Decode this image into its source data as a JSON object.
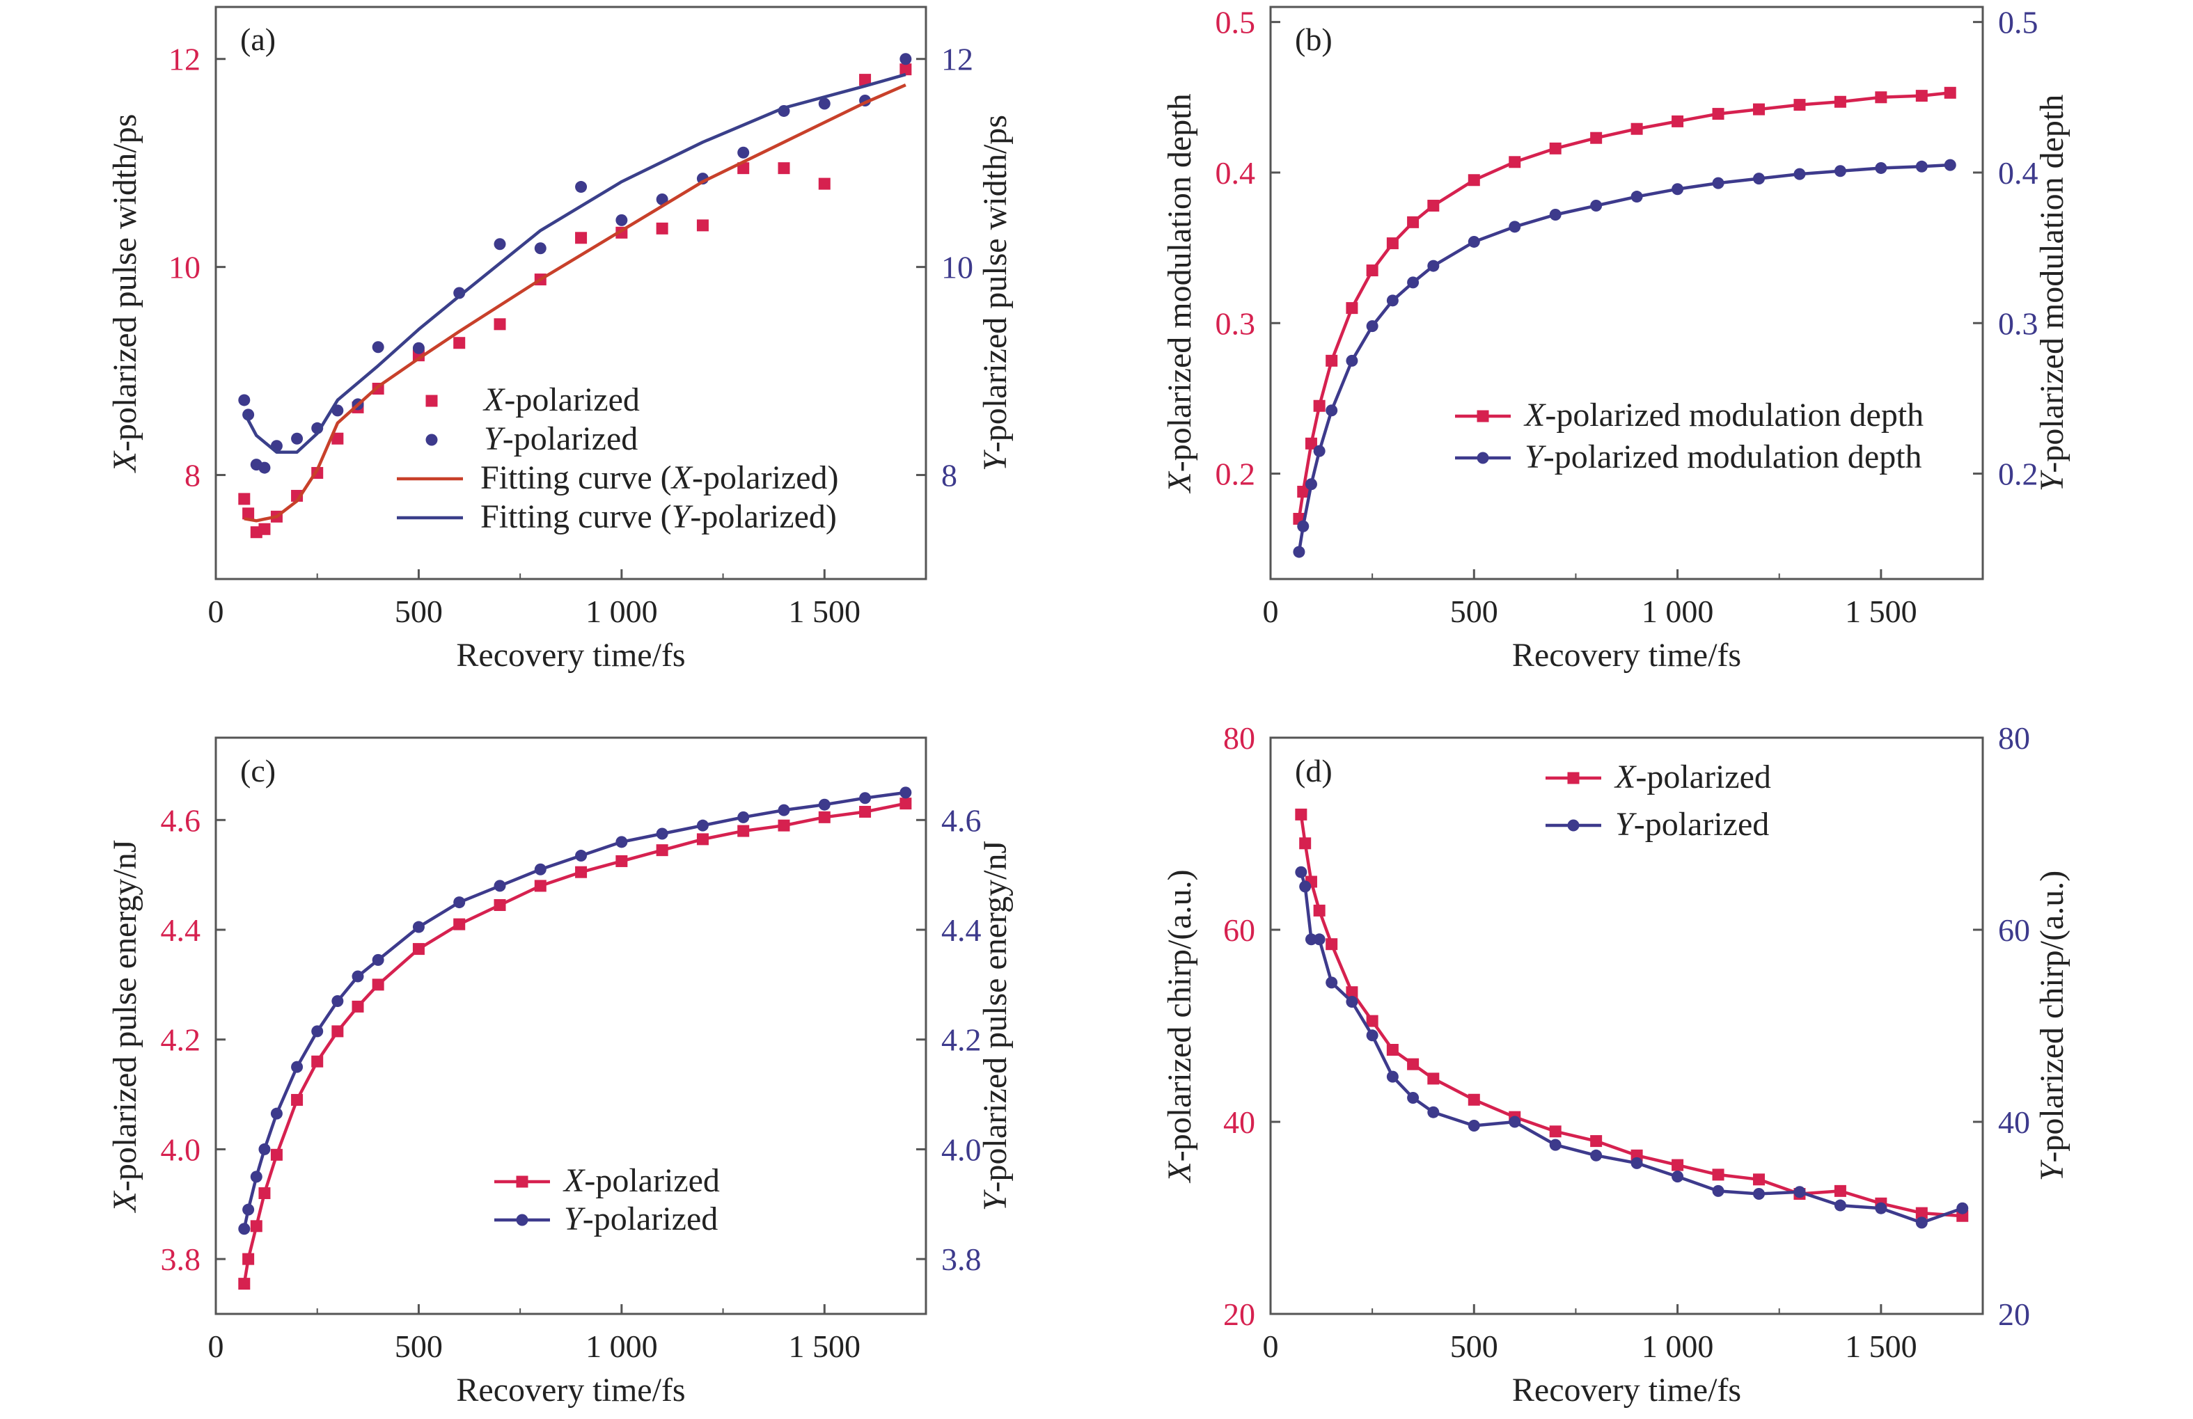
{
  "colors": {
    "x_series": "#d6214f",
    "y_series": "#3d3a8c",
    "fit_x": "#c8402a",
    "fit_y": "#3a3f8a",
    "axis": "#555555"
  },
  "chart_data": [
    {
      "panel": "(a)",
      "type": "scatter",
      "xlabel": "Recovery time/fs",
      "ylabel_left": "X-polarized pulse width/ps",
      "ylabel_right": "Y-polarized pulse width/ps",
      "xlim": [
        0,
        1750
      ],
      "ylim": [
        7,
        12.5
      ],
      "xticks": [
        0,
        500,
        1000,
        1500
      ],
      "xtick_labels": [
        "0",
        "500",
        "1 000",
        "1 500"
      ],
      "yticks": [
        8,
        10,
        12
      ],
      "ytick_labels": [
        "8",
        "10",
        "12"
      ],
      "legend": [
        "X-polarized",
        "Y-polarized",
        "Fitting curve (X-polarized)",
        "Fitting curve (Y-polarized)"
      ],
      "series": [
        {
          "name": "X-polarized",
          "role": "points",
          "x": [
            70,
            80,
            100,
            120,
            150,
            200,
            250,
            300,
            350,
            400,
            500,
            600,
            700,
            800,
            900,
            1000,
            1100,
            1200,
            1300,
            1400,
            1500,
            1600,
            1700
          ],
          "y": [
            7.77,
            7.63,
            7.45,
            7.48,
            7.6,
            7.8,
            8.02,
            8.35,
            8.65,
            8.83,
            9.15,
            9.27,
            9.45,
            9.88,
            10.28,
            10.33,
            10.37,
            10.4,
            10.95,
            10.95,
            10.8,
            11.8,
            11.9
          ]
        },
        {
          "name": "Y-polarized",
          "role": "points",
          "x": [
            70,
            80,
            100,
            120,
            150,
            200,
            250,
            300,
            350,
            400,
            500,
            600,
            700,
            800,
            900,
            1000,
            1100,
            1200,
            1300,
            1400,
            1500,
            1600,
            1700
          ],
          "y": [
            8.72,
            8.58,
            8.1,
            8.07,
            8.28,
            8.35,
            8.45,
            8.62,
            8.68,
            9.23,
            9.22,
            9.75,
            10.22,
            10.18,
            10.77,
            10.45,
            10.65,
            10.85,
            11.1,
            11.5,
            11.57,
            11.6,
            12.0
          ]
        },
        {
          "name": "Fitting curve (X-polarized)",
          "role": "curve",
          "x": [
            70,
            100,
            150,
            200,
            250,
            300,
            400,
            500,
            600,
            800,
            1000,
            1200,
            1400,
            1600,
            1700
          ],
          "y": [
            7.58,
            7.56,
            7.6,
            7.75,
            8.05,
            8.5,
            8.85,
            9.12,
            9.38,
            9.88,
            10.35,
            10.82,
            11.2,
            11.58,
            11.75
          ]
        },
        {
          "name": "Fitting curve (Y-polarized)",
          "role": "curve",
          "x": [
            70,
            100,
            150,
            200,
            250,
            300,
            400,
            500,
            600,
            800,
            1000,
            1200,
            1400,
            1600,
            1700
          ],
          "y": [
            8.6,
            8.38,
            8.22,
            8.22,
            8.4,
            8.72,
            9.05,
            9.4,
            9.72,
            10.35,
            10.82,
            11.2,
            11.53,
            11.74,
            11.85
          ]
        }
      ]
    },
    {
      "panel": "(b)",
      "type": "line",
      "xlabel": "Recovery time/fs",
      "ylabel_left": "X-polarized modulation depth",
      "ylabel_right": "Y-polarized modulation depth",
      "xlim": [
        0,
        1750
      ],
      "ylim": [
        0.13,
        0.51
      ],
      "xticks": [
        0,
        500,
        1000,
        1500
      ],
      "xtick_labels": [
        "0",
        "500",
        "1 000",
        "1 500"
      ],
      "yticks": [
        0.2,
        0.3,
        0.4,
        0.5
      ],
      "ytick_labels": [
        "0.2",
        "0.3",
        "0.4",
        "0.5"
      ],
      "legend": [
        "X-polarized modulation depth",
        "Y-polarized modulation depth"
      ],
      "series": [
        {
          "name": "X-polarized modulation depth",
          "x": [
            70,
            80,
            100,
            120,
            150,
            200,
            250,
            300,
            350,
            400,
            500,
            600,
            700,
            800,
            900,
            1000,
            1100,
            1200,
            1300,
            1400,
            1500,
            1600,
            1670
          ],
          "y": [
            0.17,
            0.188,
            0.22,
            0.245,
            0.275,
            0.31,
            0.335,
            0.353,
            0.367,
            0.378,
            0.395,
            0.407,
            0.416,
            0.423,
            0.429,
            0.434,
            0.439,
            0.442,
            0.445,
            0.447,
            0.45,
            0.451,
            0.453
          ]
        },
        {
          "name": "Y-polarized modulation depth",
          "x": [
            70,
            80,
            100,
            120,
            150,
            200,
            250,
            300,
            350,
            400,
            500,
            600,
            700,
            800,
            900,
            1000,
            1100,
            1200,
            1300,
            1400,
            1500,
            1600,
            1670
          ],
          "y": [
            0.148,
            0.165,
            0.193,
            0.215,
            0.242,
            0.275,
            0.298,
            0.315,
            0.327,
            0.338,
            0.354,
            0.364,
            0.372,
            0.378,
            0.384,
            0.389,
            0.393,
            0.396,
            0.399,
            0.401,
            0.403,
            0.404,
            0.405
          ]
        }
      ]
    },
    {
      "panel": "(c)",
      "type": "line",
      "xlabel": "Recovery time/fs",
      "ylabel_left": "X-polarized pulse energy/nJ",
      "ylabel_right": "Y-polarized pulse energy/nJ",
      "xlim": [
        0,
        1750
      ],
      "ylim": [
        3.7,
        4.75
      ],
      "xticks": [
        0,
        500,
        1000,
        1500
      ],
      "xtick_labels": [
        "0",
        "500",
        "1 000",
        "1 500"
      ],
      "yticks": [
        3.8,
        4.0,
        4.2,
        4.4,
        4.6
      ],
      "ytick_labels": [
        "3.8",
        "4.0",
        "4.2",
        "4.4",
        "4.6"
      ],
      "legend": [
        "X-polarized",
        "Y-polarized"
      ],
      "series": [
        {
          "name": "X-polarized",
          "x": [
            70,
            80,
            100,
            120,
            150,
            200,
            250,
            300,
            350,
            400,
            500,
            600,
            700,
            800,
            900,
            1000,
            1100,
            1200,
            1300,
            1400,
            1500,
            1600,
            1700
          ],
          "y": [
            3.755,
            3.8,
            3.86,
            3.92,
            3.99,
            4.09,
            4.16,
            4.215,
            4.26,
            4.3,
            4.365,
            4.41,
            4.445,
            4.48,
            4.505,
            4.525,
            4.545,
            4.565,
            4.58,
            4.59,
            4.605,
            4.615,
            4.63
          ]
        },
        {
          "name": "Y-polarized",
          "x": [
            70,
            80,
            100,
            120,
            150,
            200,
            250,
            300,
            350,
            400,
            500,
            600,
            700,
            800,
            900,
            1000,
            1100,
            1200,
            1300,
            1400,
            1500,
            1600,
            1700
          ],
          "y": [
            3.855,
            3.89,
            3.95,
            4.0,
            4.065,
            4.15,
            4.215,
            4.27,
            4.315,
            4.345,
            4.405,
            4.45,
            4.48,
            4.51,
            4.535,
            4.56,
            4.575,
            4.59,
            4.605,
            4.618,
            4.628,
            4.64,
            4.65
          ]
        }
      ]
    },
    {
      "panel": "(d)",
      "type": "line",
      "xlabel": "Recovery time/fs",
      "ylabel_left": "X-polarized chirp/(a.u.)",
      "ylabel_right": "Y-polarized chirp/(a.u.)",
      "xlim": [
        0,
        1750
      ],
      "ylim": [
        20,
        80
      ],
      "xticks": [
        0,
        500,
        1000,
        1500
      ],
      "xtick_labels": [
        "0",
        "500",
        "1 000",
        "1 500"
      ],
      "yticks": [
        20,
        40,
        60,
        80
      ],
      "ytick_labels": [
        "20",
        "40",
        "60",
        "80"
      ],
      "legend": [
        "X-polarized",
        "Y-polarized"
      ],
      "series": [
        {
          "name": "X-polarized",
          "x": [
            75,
            85,
            100,
            120,
            150,
            200,
            250,
            300,
            350,
            400,
            500,
            600,
            700,
            800,
            900,
            1000,
            1100,
            1200,
            1300,
            1400,
            1500,
            1600,
            1700
          ],
          "y": [
            72,
            69,
            65,
            62,
            58.5,
            53.5,
            50.5,
            47.5,
            46,
            44.5,
            42.3,
            40.5,
            39,
            38,
            36.5,
            35.5,
            34.5,
            34,
            32.5,
            32.8,
            31.5,
            30.5,
            30.2
          ]
        },
        {
          "name": "Y-polarized",
          "x": [
            75,
            85,
            100,
            120,
            150,
            200,
            250,
            300,
            350,
            400,
            500,
            600,
            700,
            800,
            900,
            1000,
            1100,
            1200,
            1300,
            1400,
            1500,
            1600,
            1700
          ],
          "y": [
            66,
            64.5,
            59,
            59,
            54.5,
            52.5,
            49,
            44.7,
            42.5,
            41,
            39.6,
            40,
            37.6,
            36.5,
            35.7,
            34.3,
            32.8,
            32.5,
            32.7,
            31.3,
            31,
            29.5,
            31
          ]
        }
      ]
    }
  ]
}
